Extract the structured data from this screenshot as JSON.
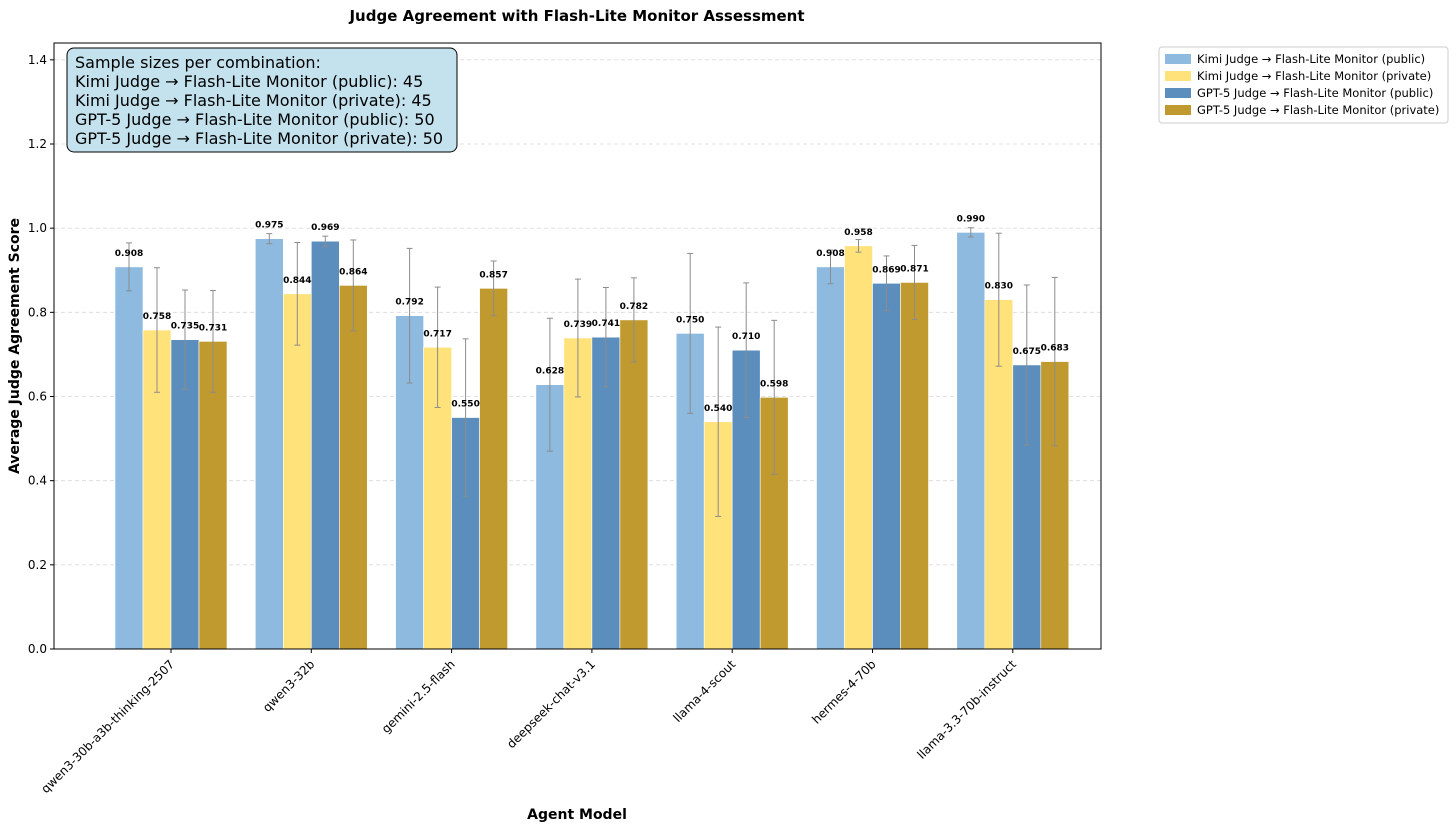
{
  "chart_data": {
    "type": "bar",
    "title": "Judge Agreement with Flash-Lite Monitor Assessment",
    "xlabel": "Agent Model",
    "ylabel": "Average Judge Agreement Score",
    "ylim": [
      0,
      1.44
    ],
    "yticks": [
      0.0,
      0.2,
      0.4,
      0.6,
      0.8,
      1.0,
      1.2,
      1.4
    ],
    "ytick_labels": [
      "0.0",
      "0.2",
      "0.4",
      "0.6",
      "0.8",
      "1.0",
      "1.2",
      "1.4"
    ],
    "grid": "horizontal dashed",
    "legend_position": "outside top-right",
    "categories": [
      "qwen3-30b-a3b-thinking-2507",
      "qwen3-32b",
      "gemini-2.5-flash",
      "deepseek-chat-v3.1",
      "llama-4-scout",
      "hermes-4-70b",
      "llama-3.3-70b-instruct"
    ],
    "series": [
      {
        "name": "Kimi Judge → Flash-Lite Monitor (public)",
        "color": "#8dbade",
        "values": [
          0.908,
          0.975,
          0.792,
          0.628,
          0.75,
          0.908,
          0.99
        ],
        "labels": [
          "0.908",
          "0.975",
          "0.792",
          "0.628",
          "0.750",
          "0.908",
          "0.990"
        ],
        "error": [
          0.057,
          0.012,
          0.16,
          0.158,
          0.19,
          0.04,
          0.011
        ]
      },
      {
        "name": "Kimi Judge → Flash-Lite Monitor (private)",
        "color": "#ffe27a",
        "values": [
          0.758,
          0.844,
          0.717,
          0.739,
          0.54,
          0.958,
          0.83
        ],
        "labels": [
          "0.758",
          "0.844",
          "0.717",
          "0.739",
          "0.540",
          "0.958",
          "0.830"
        ],
        "error": [
          0.148,
          0.122,
          0.143,
          0.14,
          0.225,
          0.015,
          0.158
        ]
      },
      {
        "name": "GPT-5 Judge → Flash-Lite Monitor (public)",
        "color": "#5b8ebd",
        "values": [
          0.735,
          0.969,
          0.55,
          0.741,
          0.71,
          0.869,
          0.675
        ],
        "labels": [
          "0.735",
          "0.969",
          "0.550",
          "0.741",
          "0.710",
          "0.869",
          "0.675"
        ],
        "error": [
          0.118,
          0.012,
          0.187,
          0.118,
          0.16,
          0.065,
          0.19
        ]
      },
      {
        "name": "GPT-5 Judge → Flash-Lite Monitor (private)",
        "color": "#c09a2e",
        "values": [
          0.731,
          0.864,
          0.857,
          0.782,
          0.598,
          0.871,
          0.683
        ],
        "labels": [
          "0.731",
          "0.864",
          "0.857",
          "0.782",
          "0.598",
          "0.871",
          "0.683"
        ],
        "error": [
          0.121,
          0.108,
          0.065,
          0.1,
          0.183,
          0.088,
          0.2
        ]
      }
    ],
    "annotation_lines": [
      "Sample sizes per combination:",
      "Kimi Judge → Flash-Lite Monitor (public): 45",
      "Kimi Judge → Flash-Lite Monitor (private): 45",
      "GPT-5 Judge → Flash-Lite Monitor (public): 50",
      "GPT-5 Judge → Flash-Lite Monitor (private): 50"
    ],
    "annotation_bg": "#c3e2ee"
  }
}
